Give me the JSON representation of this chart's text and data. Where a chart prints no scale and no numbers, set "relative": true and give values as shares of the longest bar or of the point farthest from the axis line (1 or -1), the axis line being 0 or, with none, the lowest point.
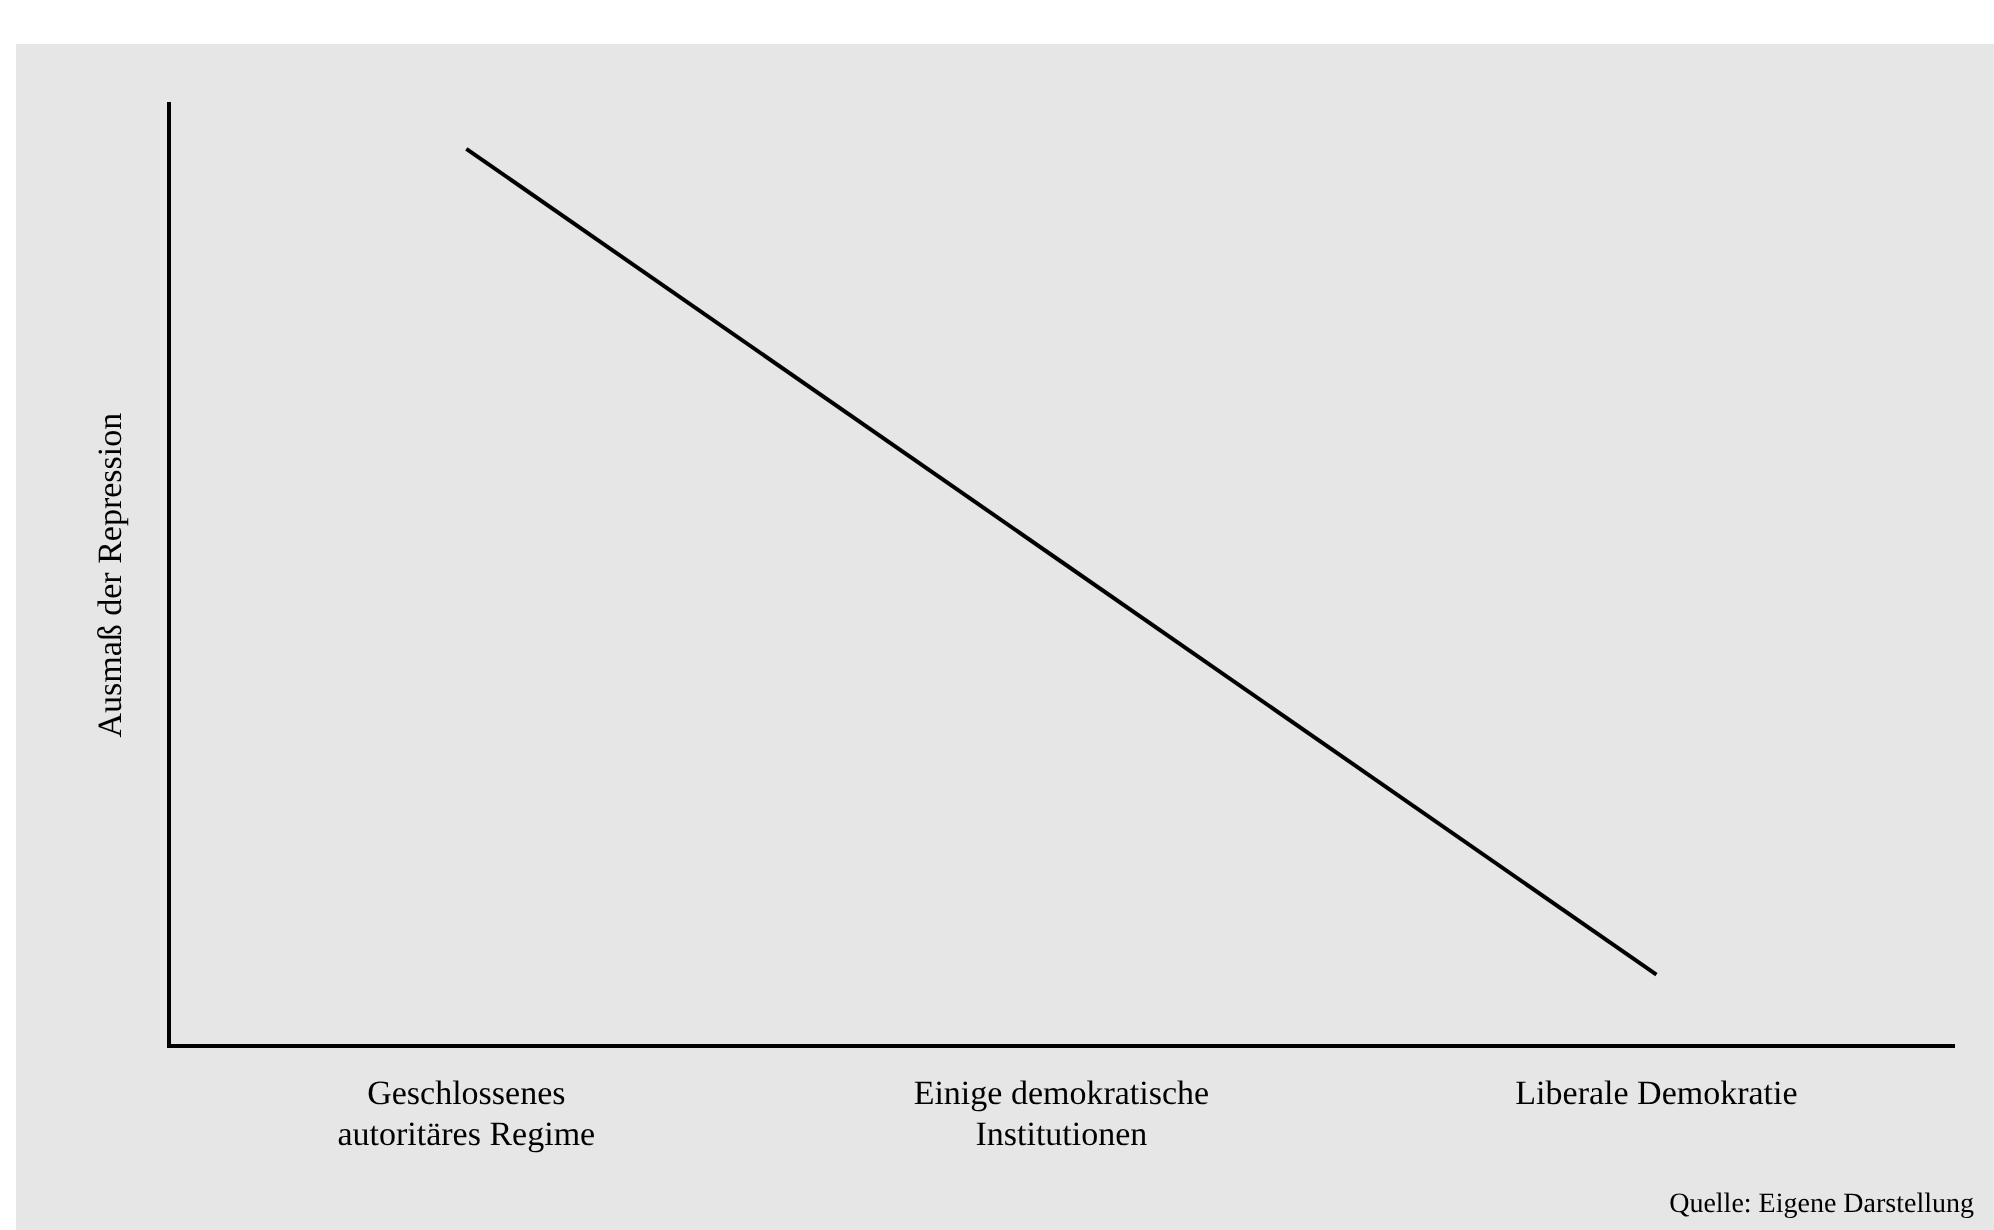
{
  "chart_data": {
    "type": "line",
    "relative": true,
    "ylabel": "Ausmaß der Repression",
    "categories": [
      "Geschlossenes\nautoritäres Regime",
      "Einige demokratische\nInstitutionen",
      "Liberale Demokratie"
    ],
    "series": [
      {
        "color": "#000000",
        "values": [
          1,
          0.54,
          0.08
        ]
      }
    ],
    "marker": "none",
    "line_style": "solid",
    "grid": false,
    "legend": false,
    "annotations": [
      "Quelle: Eigene Darstellung"
    ]
  }
}
